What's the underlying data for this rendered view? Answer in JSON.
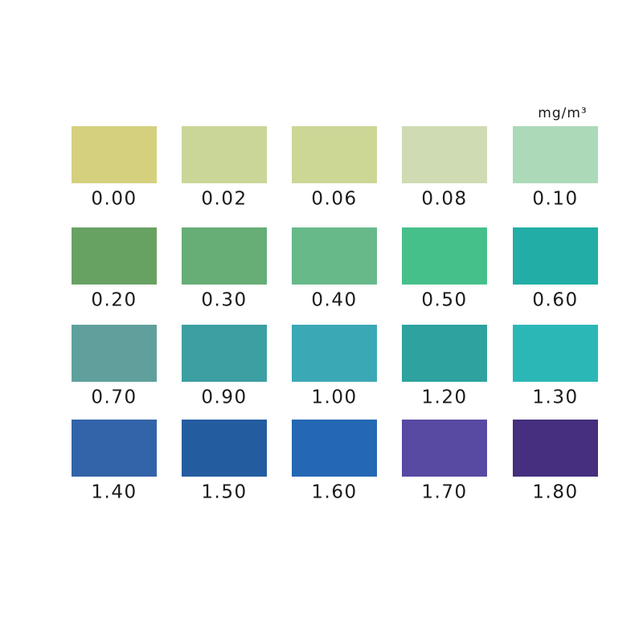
{
  "unit": "mg/m³",
  "swatches": [
    {
      "label": "0.00",
      "color": "#d5d07e"
    },
    {
      "label": "0.02",
      "color": "#c9d697"
    },
    {
      "label": "0.06",
      "color": "#ccd796"
    },
    {
      "label": "0.08",
      "color": "#cfdbb2"
    },
    {
      "label": "0.10",
      "color": "#acdab9"
    },
    {
      "label": "0.20",
      "color": "#68a262"
    },
    {
      "label": "0.30",
      "color": "#66ad76"
    },
    {
      "label": "0.40",
      "color": "#67b98a"
    },
    {
      "label": "0.50",
      "color": "#46c08a"
    },
    {
      "label": "0.60",
      "color": "#22aea6"
    },
    {
      "label": "0.70",
      "color": "#5fa09d"
    },
    {
      "label": "0.90",
      "color": "#3c9fa1"
    },
    {
      "label": "1.00",
      "color": "#3ba8b5"
    },
    {
      "label": "1.20",
      "color": "#2da29f"
    },
    {
      "label": "1.30",
      "color": "#2cb7b7"
    },
    {
      "label": "1.40",
      "color": "#3363a9"
    },
    {
      "label": "1.50",
      "color": "#235da0"
    },
    {
      "label": "1.60",
      "color": "#2468b4"
    },
    {
      "label": "1.70",
      "color": "#5849a3"
    },
    {
      "label": "1.80",
      "color": "#452f7e"
    }
  ]
}
